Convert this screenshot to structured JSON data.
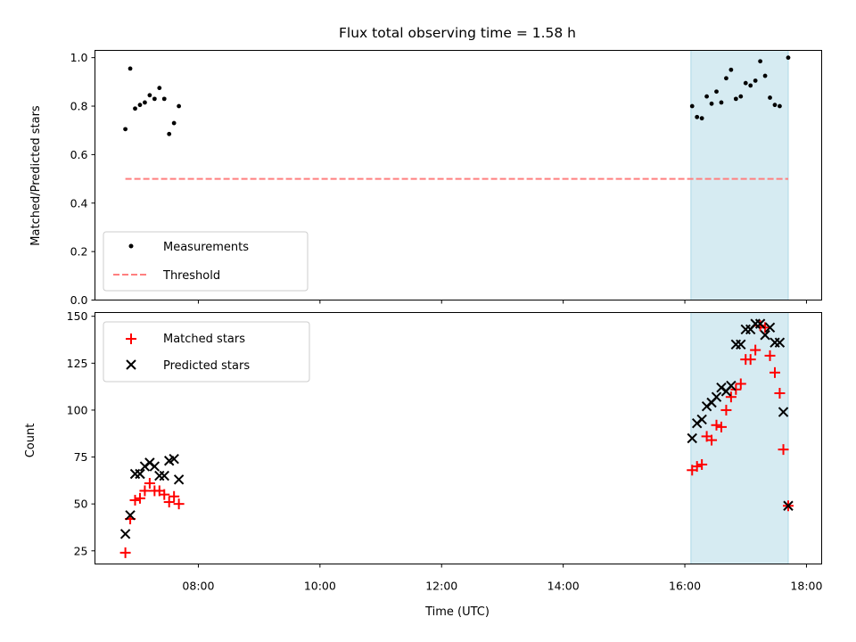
{
  "chart_data": {
    "title": "Flux total observing time = 1.58 h",
    "xlabel": "Time (UTC)",
    "x_ticks": [
      "08:00",
      "10:00",
      "12:00",
      "14:00",
      "16:00",
      "18:00"
    ],
    "x_tick_hours": [
      8,
      10,
      12,
      14,
      16,
      18
    ],
    "xlim_hours": [
      6.3,
      18.25
    ],
    "highlight_span_hours": [
      16.1,
      17.7
    ],
    "highlight_color": "#add8e6",
    "panels": [
      {
        "type": "scatter",
        "ylabel": "Matched/Predicted stars",
        "ylim": [
          0,
          1.03
        ],
        "y_ticks": [
          "0.0",
          "0.2",
          "0.4",
          "0.6",
          "0.8",
          "1.0"
        ],
        "y_tick_values": [
          0,
          0.2,
          0.4,
          0.6,
          0.8,
          1.0
        ],
        "legend_position": "lower-left",
        "series": [
          {
            "name": "Measurements",
            "marker": "dot",
            "color": "#000000",
            "x": [
              6.8,
              6.88,
              6.96,
              7.04,
              7.12,
              7.2,
              7.28,
              7.36,
              7.44,
              7.52,
              7.6,
              7.68,
              16.12,
              16.2,
              16.28,
              16.36,
              16.44,
              16.52,
              16.6,
              16.68,
              16.76,
              16.84,
              16.92,
              17.0,
              17.08,
              17.16,
              17.24,
              17.32,
              17.4,
              17.48,
              17.56,
              17.7
            ],
            "y": [
              0.705,
              0.955,
              0.79,
              0.805,
              0.815,
              0.845,
              0.83,
              0.875,
              0.83,
              0.685,
              0.73,
              0.8,
              0.8,
              0.755,
              0.75,
              0.84,
              0.81,
              0.86,
              0.815,
              0.915,
              0.95,
              0.83,
              0.84,
              0.895,
              0.885,
              0.905,
              0.985,
              0.925,
              0.835,
              0.805,
              0.8,
              1.0
            ]
          },
          {
            "name": "Threshold",
            "marker": "dashed-line",
            "color": "#ff7f7f",
            "x": [
              6.8,
              17.7
            ],
            "y": [
              0.5,
              0.5
            ]
          }
        ]
      },
      {
        "type": "scatter",
        "ylabel": "Count",
        "ylim": [
          18,
          152
        ],
        "y_ticks": [
          "25",
          "50",
          "75",
          "100",
          "125",
          "150"
        ],
        "y_tick_values": [
          25,
          50,
          75,
          100,
          125,
          150
        ],
        "legend_position": "upper-left",
        "series": [
          {
            "name": "Matched stars",
            "marker": "plus",
            "color": "#ff0000",
            "x": [
              6.8,
              6.88,
              6.96,
              7.04,
              7.12,
              7.2,
              7.28,
              7.36,
              7.44,
              7.52,
              7.6,
              7.68,
              16.12,
              16.2,
              16.28,
              16.36,
              16.44,
              16.52,
              16.6,
              16.68,
              16.76,
              16.84,
              16.92,
              17.0,
              17.08,
              17.16,
              17.24,
              17.32,
              17.4,
              17.48,
              17.56,
              17.62,
              17.7
            ],
            "y": [
              24,
              42,
              52,
              53,
              57,
              61,
              57,
              57,
              55,
              51,
              54,
              50,
              68,
              70,
              71,
              86,
              84,
              92,
              91,
              100,
              107,
              111,
              114,
              127,
              127,
              132,
              145,
              144,
              129,
              120,
              109,
              79,
              49
            ]
          },
          {
            "name": "Predicted stars",
            "marker": "x",
            "color": "#000000",
            "x": [
              6.8,
              6.88,
              6.96,
              7.04,
              7.12,
              7.2,
              7.28,
              7.36,
              7.44,
              7.52,
              7.6,
              7.68,
              16.12,
              16.2,
              16.28,
              16.36,
              16.44,
              16.52,
              16.6,
              16.68,
              16.76,
              16.84,
              16.92,
              17.0,
              17.08,
              17.16,
              17.24,
              17.32,
              17.4,
              17.48,
              17.56,
              17.62,
              17.7
            ],
            "y": [
              34,
              44,
              66,
              66,
              70,
              72,
              70,
              65,
              65,
              73,
              74,
              63,
              85,
              93,
              95,
              102,
              104,
              107,
              112,
              110,
              113,
              135,
              135,
              143,
              143,
              146,
              146,
              140,
              144,
              136,
              136,
              99,
              49
            ]
          }
        ]
      }
    ]
  }
}
